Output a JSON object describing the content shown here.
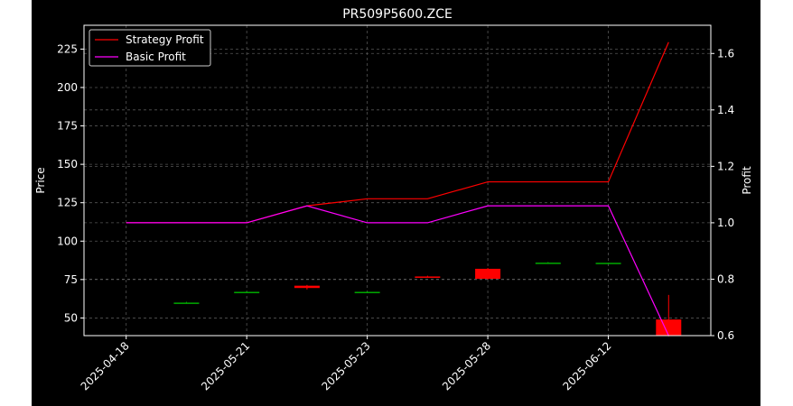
{
  "colors": {
    "background": "#000000",
    "axes": "#ffffff",
    "grid": "#555555",
    "strategy_line": "#ff0000",
    "basic_line": "#ff00ff",
    "candle_down": "#ff0000",
    "candle_up": "#00aa00"
  },
  "chart_data": {
    "type": "line",
    "title": "PR509P5600.ZCE",
    "ylabel_left": "Price",
    "ylabel_right": "Profit",
    "x_tick_labels": [
      "2025-04-18",
      "2025-05-21",
      "2025-05-23",
      "2025-05-28",
      "2025-06-12"
    ],
    "x_tick_positions": [
      0,
      2,
      4,
      6,
      8
    ],
    "xlim": [
      -0.7,
      9.7
    ],
    "ylim_left": [
      38.5,
      240.5
    ],
    "yticks_left": [
      50,
      75,
      100,
      125,
      150,
      175,
      200,
      225
    ],
    "ylim_right": [
      0.6,
      1.7
    ],
    "yticks_right": [
      0.6,
      0.8,
      1.0,
      1.2,
      1.4,
      1.6
    ],
    "grid": true,
    "legend_position": "upper-left",
    "series": [
      {
        "name": "Strategy Profit",
        "axis": "right",
        "x": [
          0,
          1,
          2,
          3,
          4,
          5,
          6,
          7,
          8,
          9
        ],
        "values": [
          1.0,
          1.0,
          1.0,
          1.06,
          1.085,
          1.085,
          1.145,
          1.145,
          1.145,
          1.64
        ]
      },
      {
        "name": "Basic Profit",
        "axis": "right",
        "x": [
          0,
          1,
          2,
          3,
          4,
          5,
          6,
          7,
          8,
          9
        ],
        "values": [
          1.0,
          1.0,
          1.0,
          1.06,
          1.0,
          1.0,
          1.06,
          1.06,
          1.06,
          0.6
        ]
      }
    ],
    "candles": [
      {
        "x": 1,
        "open": 60.0,
        "high": 60.5,
        "low": 59.8,
        "close": 60.0
      },
      {
        "x": 2,
        "open": 67.0,
        "high": 67.3,
        "low": 66.7,
        "close": 67.0
      },
      {
        "x": 3,
        "open": 71.0,
        "high": 71.5,
        "low": 68.5,
        "close": 69.5
      },
      {
        "x": 4,
        "open": 67.0,
        "high": 67.3,
        "low": 66.7,
        "close": 67.0
      },
      {
        "x": 5,
        "open": 77.0,
        "high": 77.5,
        "low": 76.5,
        "close": 76.8
      },
      {
        "x": 6,
        "open": 82.0,
        "high": 82.5,
        "low": 75.0,
        "close": 75.5
      },
      {
        "x": 7,
        "open": 86.0,
        "high": 86.4,
        "low": 85.7,
        "close": 86.0
      },
      {
        "x": 8,
        "open": 85.5,
        "high": 85.9,
        "low": 85.3,
        "close": 85.9
      },
      {
        "x": 9,
        "open": 49.0,
        "high": 65.0,
        "low": 38.0,
        "close": 38.5
      }
    ]
  }
}
